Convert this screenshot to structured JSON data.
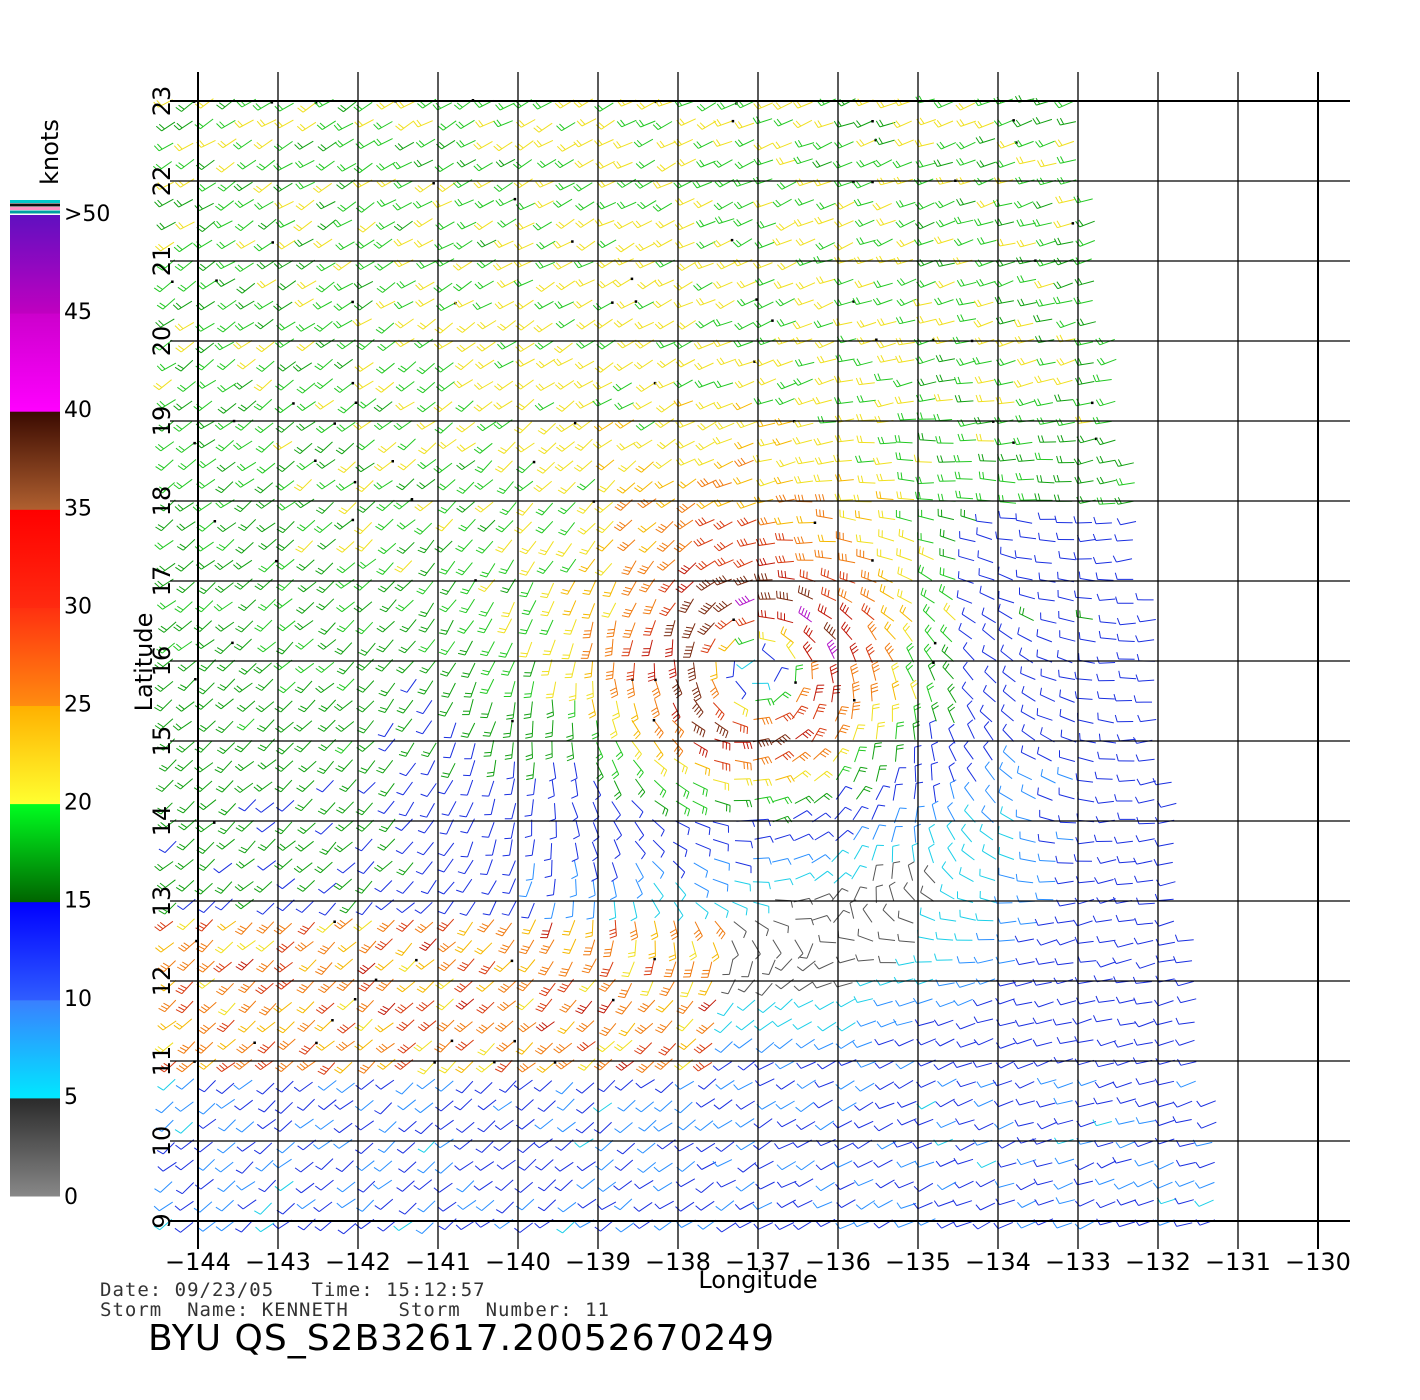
{
  "title": "BYU  QS_S2B32617.20052670249",
  "info": {
    "date_line": "Date: 09/23/05   Time: 15:12:57",
    "storm_line": "Storm  Name: KENNETH    Storm  Number: 11"
  },
  "axes": {
    "xlabel": "Longitude",
    "ylabel": "Latitude",
    "xticks": [
      "-144",
      "-143",
      "-142",
      "-141",
      "-140",
      "-139",
      "-138",
      "-137",
      "-136",
      "-135",
      "-134",
      "-133",
      "-132",
      "-131",
      "-130"
    ],
    "yticks": [
      "9",
      "10",
      "11",
      "12",
      "13",
      "14",
      "15",
      "16",
      "17",
      "18",
      "19",
      "20",
      "21",
      "22",
      "23"
    ],
    "xlim": [
      -144,
      -130
    ],
    "ylim": [
      9,
      23
    ],
    "grid": true
  },
  "legend": {
    "unit": "knots",
    "labels": [
      "0",
      "5",
      "10",
      "15",
      "20",
      "25",
      "30",
      "35",
      "40",
      "45",
      ">50"
    ],
    "bands": [
      {
        "from": 0,
        "to": 5,
        "colors": [
          "#888888",
          "#2a2a2a"
        ]
      },
      {
        "from": 5,
        "to": 10,
        "colors": [
          "#00e8ff",
          "#3a7fff"
        ]
      },
      {
        "from": 10,
        "to": 15,
        "colors": [
          "#2f5dff",
          "#0000ff"
        ]
      },
      {
        "from": 15,
        "to": 20,
        "colors": [
          "#006400",
          "#00ff20"
        ]
      },
      {
        "from": 20,
        "to": 25,
        "colors": [
          "#ffff30",
          "#ffb000"
        ]
      },
      {
        "from": 25,
        "to": 30,
        "colors": [
          "#ff8c10",
          "#ff3010"
        ]
      },
      {
        "from": 30,
        "to": 35,
        "colors": [
          "#ff2a10",
          "#ff0000"
        ]
      },
      {
        "from": 35,
        "to": 40,
        "colors": [
          "#b06030",
          "#3a0a00"
        ]
      },
      {
        "from": 40,
        "to": 45,
        "colors": [
          "#ff00ff",
          "#cc00cc"
        ]
      },
      {
        "from": 45,
        "to": 50,
        "colors": [
          "#c000c0",
          "#6010c0"
        ]
      }
    ]
  },
  "map_data": {
    "type": "wind_barbs",
    "storm_center": {
      "lon": -137.0,
      "lat": 15.9
    },
    "max_wind_knots": 50,
    "swath": {
      "corners": [
        [
          -144.0,
          23.0
        ],
        [
          -133.0,
          23.0
        ],
        [
          -132.2,
          18.0
        ],
        [
          -131.1,
          9.0
        ],
        [
          -144.0,
          9.0
        ]
      ]
    }
  }
}
